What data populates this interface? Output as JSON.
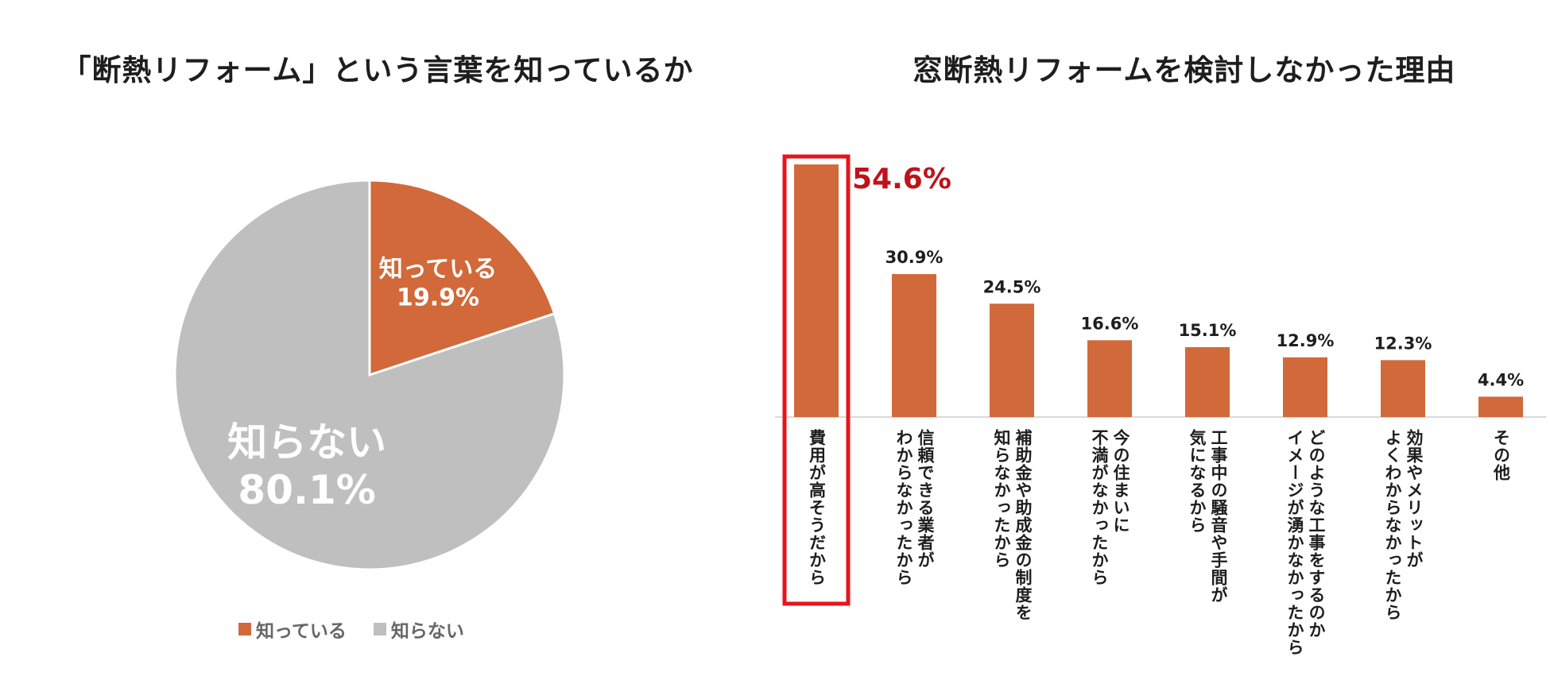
{
  "chart_data": [
    {
      "type": "pie",
      "title": "「断熱リフォーム」という言葉を知っているか",
      "slices": [
        {
          "label": "知っている",
          "value": 19.9,
          "value_label": "19.9%",
          "color": "#D2693A"
        },
        {
          "label": "知らない",
          "value": 80.1,
          "value_label": "80.1%",
          "color": "#BFBFBF"
        }
      ],
      "legend": [
        "知っている",
        "知らない"
      ],
      "legend_position": "bottom"
    },
    {
      "type": "bar",
      "title": "窓断熱リフォームを検討しなかった理由",
      "categories": [
        [
          "費用が高そうだから"
        ],
        [
          "信頼できる業者が",
          "わからなかったから"
        ],
        [
          "補助金や助成金の制度を",
          "知らなかったから"
        ],
        [
          "今の住まいに",
          "不満がなかったから"
        ],
        [
          "工事中の騒音や手間が",
          "気になるから"
        ],
        [
          "どのような工事をするのか",
          "イメージが湧かなかったから"
        ],
        [
          "効果やメリットが",
          "よくわからなかったから"
        ],
        [
          "その他"
        ]
      ],
      "values": [
        54.6,
        30.9,
        24.5,
        16.6,
        15.1,
        12.9,
        12.3,
        4.4
      ],
      "value_labels": [
        "54.6%",
        "30.9%",
        "24.5%",
        "16.6%",
        "15.1%",
        "12.9%",
        "12.3%",
        "4.4%"
      ],
      "bar_color": "#D2693A",
      "highlight_index": 0,
      "highlight_color": "#E8141B",
      "ylim": [
        0,
        54.6
      ],
      "grid": false
    }
  ]
}
